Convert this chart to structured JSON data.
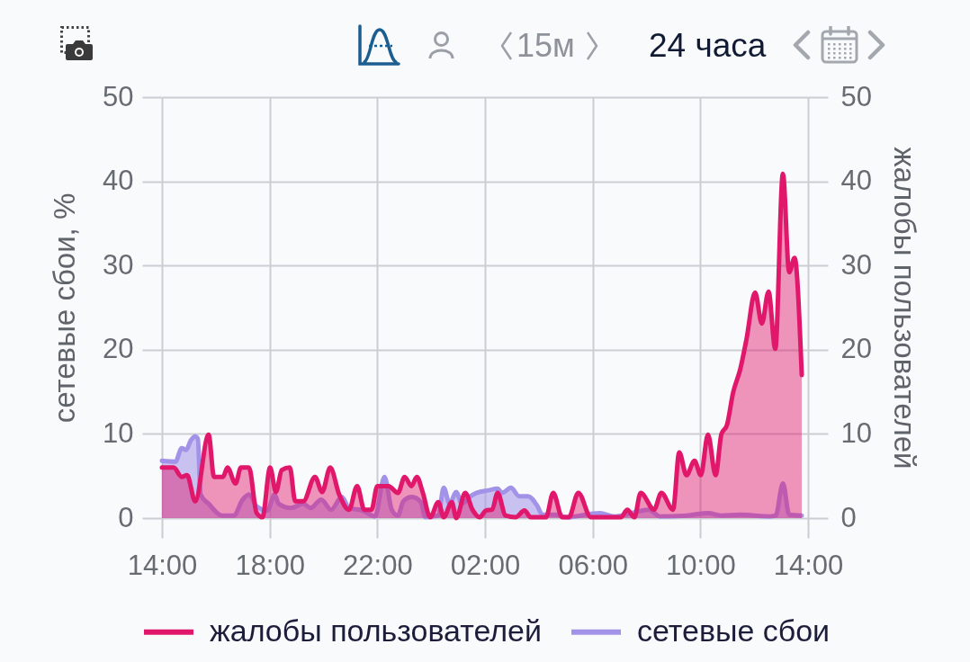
{
  "chart_data": {
    "type": "area",
    "annotations": [
      "15м",
      "24 часа"
    ],
    "ylabel": "сетевые сбои, %",
    "y2label": "жалобы пользователей",
    "xlim": [
      "--01-01T14:00",
      "--01-02T14:00"
    ],
    "xticks": [
      {
        "value": "--01-01T14:00",
        "label": "14:00"
      },
      {
        "value": "--01-01T18:00",
        "label": "18:00"
      },
      {
        "value": "--01-01T22:00",
        "label": "22:00"
      },
      {
        "value": "--01-02T02:00",
        "label": "02:00"
      },
      {
        "value": "--01-02T06:00",
        "label": "06:00"
      },
      {
        "value": "--01-02T10:00",
        "label": "10:00"
      },
      {
        "value": "--01-02T14:00",
        "label": "14:00"
      }
    ],
    "ylim": [
      0,
      50
    ],
    "yticks": [
      0,
      10,
      20,
      30,
      40,
      50
    ],
    "y2lim": [
      0,
      50
    ],
    "y2ticks": [
      0,
      10,
      20,
      30,
      40,
      50
    ],
    "grid": true,
    "legend": "bottom",
    "series": [
      {
        "name": "жалобы пользователей",
        "color": "#e0176b",
        "axis": "y2",
        "x": [
          "--01-01T14:00",
          "--01-01T14:26",
          "--01-01T14:44",
          "--01-01T14:56",
          "--01-01T15:14",
          "--01-01T15:44",
          "--01-01T15:56",
          "--01-01T16:16",
          "--01-01T16:26",
          "--01-01T16:44",
          "--01-01T16:56",
          "--01-01T17:14",
          "--01-01T17:31",
          "--01-01T17:44",
          "--01-01T18:01",
          "--01-01T18:14",
          "--01-01T18:27",
          "--01-01T18:45",
          "--01-01T18:57",
          "--01-01T19:15",
          "--01-01T19:41",
          "--01-01T19:57",
          "--01-01T20:15",
          "--01-01T20:35",
          "--01-01T20:57",
          "--01-01T21:15",
          "--01-01T21:31",
          "--01-01T21:47",
          "--01-01T22:00",
          "--01-01T22:25",
          "--01-01T22:46",
          "--01-01T23:01",
          "--01-01T23:16",
          "--01-01T23:28",
          "--01-01T23:41",
          "--01-01T23:58",
          "--01-02T00:16",
          "--01-02T00:28",
          "--01-02T00:46",
          "--01-02T00:56",
          "--01-02T01:16",
          "--01-02T01:32",
          "--01-02T01:48",
          "--01-02T02:02",
          "--01-02T02:16",
          "--01-02T02:28",
          "--01-02T02:46",
          "--01-02T03:08",
          "--01-02T03:28",
          "--01-02T03:42",
          "--01-02T04:16",
          "--01-02T04:32",
          "--01-02T04:52",
          "--01-02T05:07",
          "--01-02T05:28",
          "--01-02T05:56",
          "--01-02T07:03",
          "--01-02T07:17",
          "--01-02T07:33",
          "--01-02T07:47",
          "--01-02T08:17",
          "--01-02T08:33",
          "--01-02T08:59",
          "--01-02T09:13",
          "--01-02T09:29",
          "--01-02T09:47",
          "--01-02T10:01",
          "--01-02T10:17",
          "--01-02T10:34",
          "--01-02T10:47",
          "--01-02T10:59",
          "--01-02T11:13",
          "--01-02T11:29",
          "--01-02T11:43",
          "--01-02T12:02",
          "--01-02T12:17",
          "--01-02T12:32",
          "--01-02T12:47",
          "--01-02T13:04",
          "--01-02T13:18",
          "--01-02T13:30",
          "--01-02T13:46"
        ],
        "values": [
          6,
          6,
          4.9,
          5.1,
          2,
          9.9,
          4.9,
          4.9,
          6,
          4.1,
          6,
          6,
          0.6,
          0.1,
          6,
          3.1,
          5.7,
          6,
          2,
          2,
          4.9,
          3.1,
          6,
          2.8,
          1,
          3.8,
          1,
          1,
          3.8,
          3.8,
          3,
          4.9,
          3.8,
          4.9,
          3.1,
          0.1,
          1.9,
          0.1,
          1.9,
          0,
          3,
          1,
          0.1,
          0.9,
          1,
          3,
          0.3,
          0.1,
          0.9,
          0.1,
          0.1,
          3,
          0.1,
          0.1,
          3,
          0.1,
          0.1,
          1,
          0.1,
          3,
          1,
          3,
          1,
          7.8,
          5.1,
          6.8,
          5.1,
          9.9,
          5.1,
          10,
          11,
          14.9,
          17.7,
          21.3,
          26.8,
          23.1,
          26.9,
          20.1,
          40.9,
          29.2,
          30.9,
          17
        ]
      },
      {
        "name": "сетевые сбои",
        "color": "#a393e8",
        "axis": "y",
        "x": [
          "--01-01T14:00",
          "--01-01T14:30",
          "--01-01T14:44",
          "--01-01T14:54",
          "--01-01T15:04",
          "--01-01T15:14",
          "--01-01T15:20",
          "--01-01T15:26",
          "--01-01T15:44",
          "--01-01T16:14",
          "--01-01T16:40",
          "--01-01T17:00",
          "--01-01T17:14",
          "--01-01T17:31",
          "--01-01T17:55",
          "--01-01T18:11",
          "--01-01T18:20",
          "--01-01T18:47",
          "--01-01T19:15",
          "--01-01T19:31",
          "--01-01T19:55",
          "--01-01T20:17",
          "--01-01T20:41",
          "--01-01T20:57",
          "--01-01T21:27",
          "--01-01T21:55",
          "--01-01T22:16",
          "--01-01T22:32",
          "--01-01T22:46",
          "--01-01T22:58",
          "--01-01T23:17",
          "--01-01T23:37",
          "--01-01T23:47",
          "--01-02T00:16",
          "--01-02T00:28",
          "--01-02T00:41",
          "--01-02T00:56",
          "--01-02T01:08",
          "--01-02T01:28",
          "--01-02T01:42",
          "--01-02T02:08",
          "--01-02T02:28",
          "--01-02T02:38",
          "--01-02T02:58",
          "--01-02T03:16",
          "--01-02T03:36",
          "--01-02T03:56",
          "--01-02T04:08",
          "--01-02T04:37",
          "--01-02T05:02",
          "--01-02T06:16",
          "--01-02T06:48",
          "--01-02T08:05",
          "--01-02T08:30",
          "--01-02T09:30",
          "--01-02T10:17",
          "--01-02T10:48",
          "--01-02T11:29",
          "--01-02T12:36",
          "--01-02T12:48",
          "--01-02T13:04",
          "--01-02T13:18",
          "--01-02T13:46"
        ],
        "values": [
          6.8,
          6.7,
          8.3,
          8.1,
          9.2,
          9.7,
          9.4,
          2.8,
          1.7,
          0.3,
          0.3,
          2.2,
          2.8,
          1.4,
          0.9,
          2.8,
          1.7,
          1.2,
          1.7,
          1.2,
          2.2,
          1,
          2.5,
          1.2,
          0.9,
          0.2,
          4.9,
          1,
          0.3,
          2,
          2.5,
          1.9,
          0.1,
          0.3,
          3.6,
          1.7,
          3.1,
          1.7,
          2.6,
          3,
          3.3,
          3.5,
          3,
          3.6,
          2.6,
          2.6,
          1.5,
          0.4,
          0.4,
          0.1,
          0.6,
          0.2,
          1,
          0.2,
          0.3,
          0.6,
          0.3,
          0.4,
          0.2,
          0.3,
          4.1,
          0.4,
          0.3
        ]
      }
    ]
  }
}
